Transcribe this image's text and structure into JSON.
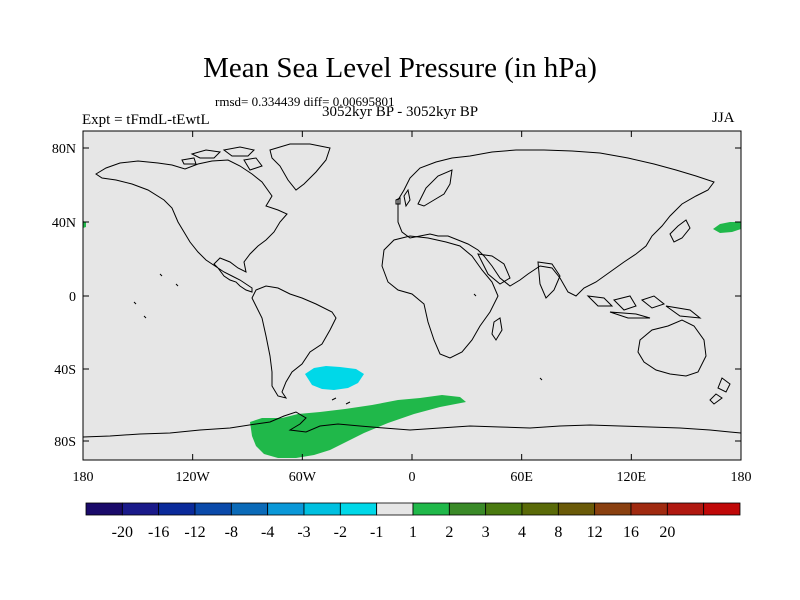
{
  "title": "Mean Sea Level Pressure (in hPa)",
  "stats_text": "rmsd= 0.334439 diff= 0.00695801",
  "period_text": "3052kyr BP - 3052kyr BP",
  "expt_text": "Expt = tFmdL-tEwtL",
  "season_text": "JJA",
  "map": {
    "ocean_color": "#e6e6e6",
    "coast_color": "#000000",
    "lon_ticks": [
      "180",
      "120W",
      "60W",
      "0",
      "60E",
      "120E",
      "180"
    ],
    "lat_ticks": [
      "80N",
      "40N",
      "0",
      "40S",
      "80S"
    ],
    "anomaly_regions": [
      {
        "name": "south-atlantic-negative-anomaly",
        "color": "#00d8e8",
        "level": "-2 to -1"
      },
      {
        "name": "antarctic-positive-anomaly",
        "color": "#20b84a",
        "level": "1 to 2"
      },
      {
        "name": "north-pacific-positive-anomaly",
        "color": "#20b84a",
        "level": "1 to 2"
      }
    ]
  },
  "colorbar": {
    "colors": [
      "#1a0a6a",
      "#1a1a8a",
      "#0a2a9a",
      "#0a4aaa",
      "#0a6ab8",
      "#0a98d8",
      "#00c0e0",
      "#00d8e8",
      "#e6e6e6",
      "#20b84a",
      "#3a8a28",
      "#4a7a10",
      "#5a6a08",
      "#6a5a08",
      "#8a4010",
      "#a02a10",
      "#b01810",
      "#c00808"
    ],
    "labels": [
      "-20",
      "-16",
      "-12",
      "-8",
      "-4",
      "-3",
      "-2",
      "-1",
      "1",
      "2",
      "3",
      "4",
      "8",
      "12",
      "16",
      "20"
    ]
  }
}
